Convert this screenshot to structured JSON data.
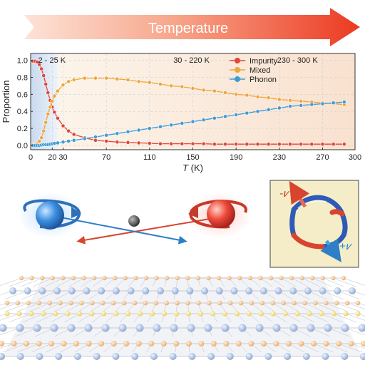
{
  "banner": {
    "label": "Temperature"
  },
  "chart_data": {
    "type": "line",
    "ylabel": "Proportion",
    "xlabel_italic": "T",
    "xlabel_unit": " (K)",
    "xlim": [
      0,
      300
    ],
    "ylim": [
      -0.05,
      1.08
    ],
    "xticks": [
      0,
      20,
      30,
      70,
      110,
      150,
      190,
      230,
      270,
      300
    ],
    "yticks": [
      0.0,
      0.2,
      0.4,
      0.6,
      0.8,
      1.0
    ],
    "ytick_labels": [
      "0.0",
      "0.2",
      "0.4",
      "0.6",
      "0.8",
      "1.0"
    ],
    "regions": [
      {
        "label": "2 - 25 K"
      },
      {
        "label": "30 - 220 K"
      },
      {
        "label": "230 - 300 K"
      }
    ],
    "x": [
      2,
      4,
      6,
      8,
      10,
      12,
      14,
      16,
      18,
      20,
      22,
      25,
      30,
      35,
      40,
      50,
      60,
      70,
      80,
      90,
      100,
      110,
      120,
      130,
      140,
      150,
      160,
      170,
      180,
      190,
      200,
      210,
      220,
      230,
      240,
      250,
      260,
      270,
      280,
      290
    ],
    "series": [
      {
        "name": "Impurity",
        "color": "#e0463a",
        "values": [
          0.99,
          0.99,
          0.98,
          0.95,
          0.9,
          0.82,
          0.72,
          0.62,
          0.53,
          0.45,
          0.39,
          0.32,
          0.23,
          0.17,
          0.13,
          0.09,
          0.06,
          0.05,
          0.04,
          0.035,
          0.03,
          0.025,
          0.02,
          0.02,
          0.02,
          0.02,
          0.02,
          0.015,
          0.015,
          0.015,
          0.015,
          0.015,
          0.015,
          0.015,
          0.015,
          0.015,
          0.015,
          0.015,
          0.015,
          0.015
        ]
      },
      {
        "name": "Mixed",
        "color": "#eea63d",
        "values": [
          0.01,
          0.01,
          0.02,
          0.05,
          0.09,
          0.17,
          0.27,
          0.37,
          0.45,
          0.52,
          0.58,
          0.64,
          0.71,
          0.75,
          0.77,
          0.79,
          0.79,
          0.79,
          0.78,
          0.77,
          0.75,
          0.74,
          0.72,
          0.7,
          0.69,
          0.67,
          0.65,
          0.64,
          0.62,
          0.6,
          0.59,
          0.57,
          0.56,
          0.54,
          0.53,
          0.52,
          0.51,
          0.5,
          0.49,
          0.48
        ]
      },
      {
        "name": "Phonon",
        "color": "#3f9bd6",
        "values": [
          0.0,
          0.0,
          0.0,
          0.0,
          0.005,
          0.01,
          0.01,
          0.01,
          0.015,
          0.02,
          0.025,
          0.03,
          0.04,
          0.05,
          0.06,
          0.08,
          0.1,
          0.12,
          0.14,
          0.16,
          0.18,
          0.2,
          0.22,
          0.24,
          0.26,
          0.28,
          0.3,
          0.32,
          0.34,
          0.36,
          0.38,
          0.4,
          0.42,
          0.44,
          0.46,
          0.47,
          0.48,
          0.49,
          0.5,
          0.51
        ]
      }
    ]
  },
  "inset": {
    "minus_label": "-𝑣",
    "plus_label": "+𝑣"
  }
}
